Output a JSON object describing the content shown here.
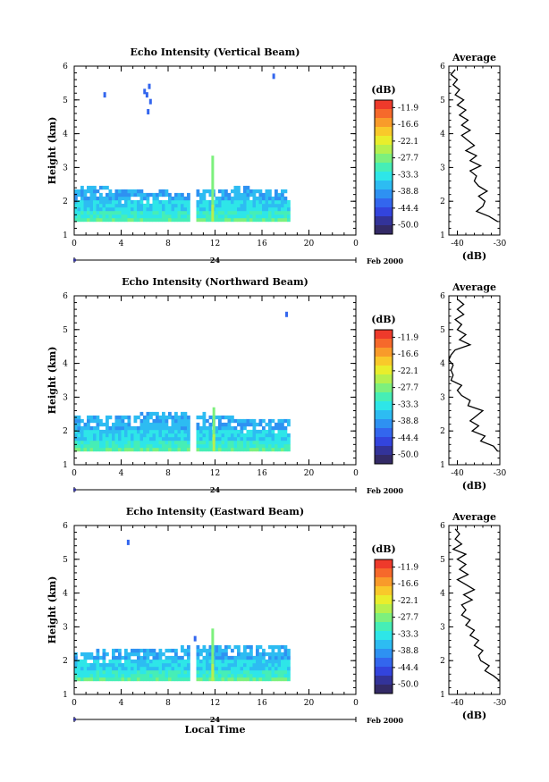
{
  "page": {
    "background": "#ffffff"
  },
  "colorbar": {
    "unit": "(dB)",
    "labels": [
      "-11.9",
      "-16.6",
      "-22.1",
      "-27.7",
      "-33.3",
      "-38.8",
      "-44.4",
      "-50.0"
    ],
    "colors": [
      "#ee3a2b",
      "#f6692b",
      "#f99b2a",
      "#f9c92a",
      "#e9ee2c",
      "#b6f04e",
      "#7df07d",
      "#46eeb6",
      "#2ee6e8",
      "#2dbcf2",
      "#2e91f2",
      "#3366ee",
      "#3344dd",
      "#333399",
      "#332a66"
    ]
  },
  "chart_data": [
    {
      "type": "heatmap",
      "title": "Echo Intensity (Vertical Beam)",
      "ylabel": "Height (km)",
      "xlabel": "",
      "xlim": [
        0,
        24
      ],
      "ylim": [
        1,
        6
      ],
      "xticks": [
        "0",
        "4",
        "8",
        "12",
        "16",
        "20",
        "0"
      ],
      "yticks": [
        "1",
        "2",
        "3",
        "4",
        "5",
        "6"
      ],
      "date_day": "24",
      "date_label": "Feb 2000",
      "echo": {
        "start": 0,
        "end": 18.5,
        "gap": [
          9.8,
          10.2
        ],
        "top_min": 2.3,
        "top_max": 2.6,
        "base": 1.4
      },
      "spike": {
        "x": 11.8,
        "top": 3.35
      },
      "specks": [
        {
          "x": 2.6,
          "y": 5.15
        },
        {
          "x": 6.0,
          "y": 5.25
        },
        {
          "x": 6.2,
          "y": 5.15
        },
        {
          "x": 6.4,
          "y": 5.4
        },
        {
          "x": 6.5,
          "y": 4.95
        },
        {
          "x": 6.3,
          "y": 4.65
        },
        {
          "x": 17.0,
          "y": 5.7
        }
      ],
      "profile": {
        "title": "Average",
        "xlabel": "(dB)",
        "xlim": [
          -42,
          -30
        ],
        "xticks": [
          "-40",
          "-30"
        ],
        "yticks": [
          "1",
          "2",
          "3",
          "4",
          "5",
          "6"
        ],
        "heights": [
          1.4,
          1.55,
          1.7,
          1.85,
          2.0,
          2.15,
          2.3,
          2.45,
          2.6,
          2.75,
          2.9,
          3.05,
          3.2,
          3.35,
          3.5,
          3.65,
          3.8,
          3.95,
          4.1,
          4.25,
          4.4,
          4.55,
          4.7,
          4.85,
          5.0,
          5.15,
          5.3,
          5.45,
          5.6,
          5.75,
          5.9
        ],
        "values": [
          -30.5,
          -32.5,
          -35.5,
          -34.0,
          -33.5,
          -35.0,
          -33.0,
          -35.0,
          -36.0,
          -35.5,
          -37.0,
          -34.5,
          -37.0,
          -35.5,
          -38.0,
          -36.0,
          -37.5,
          -39.0,
          -37.0,
          -39.0,
          -37.5,
          -39.5,
          -38.0,
          -40.0,
          -38.5,
          -40.5,
          -39.5,
          -41.0,
          -40.0,
          -41.5,
          -40.5
        ]
      }
    },
    {
      "type": "heatmap",
      "title": "Echo Intensity (Northward Beam)",
      "ylabel": "Height (km)",
      "xlabel": "",
      "xlim": [
        0,
        24
      ],
      "ylim": [
        1,
        6
      ],
      "xticks": [
        "0",
        "4",
        "8",
        "12",
        "16",
        "20",
        "0"
      ],
      "yticks": [
        "1",
        "2",
        "3",
        "4",
        "5",
        "6"
      ],
      "date_day": "24",
      "date_label": "Feb 2000",
      "echo": {
        "start": 0,
        "end": 18.5,
        "gap": [
          9.8,
          10.2
        ],
        "top_min": 2.35,
        "top_max": 2.6,
        "base": 1.4
      },
      "spike": {
        "x": 11.9,
        "top": 2.7
      },
      "specks": [
        {
          "x": 18.1,
          "y": 5.45
        }
      ],
      "profile": {
        "title": "Average",
        "xlabel": "(dB)",
        "xlim": [
          -42,
          -30
        ],
        "xticks": [
          "-40",
          "-30"
        ],
        "yticks": [
          "1",
          "2",
          "3",
          "4",
          "5",
          "6"
        ],
        "heights": [
          1.4,
          1.55,
          1.7,
          1.85,
          2.0,
          2.15,
          2.3,
          2.45,
          2.6,
          2.75,
          2.9,
          3.05,
          3.2,
          3.35,
          3.5,
          3.65,
          3.8,
          3.95,
          4.1,
          4.25,
          4.4,
          4.55,
          4.7,
          4.85,
          5.0,
          5.15,
          5.3,
          5.45,
          5.6,
          5.75,
          5.9
        ],
        "values": [
          -30.5,
          -31.5,
          -34.5,
          -33.5,
          -36.5,
          -35.0,
          -37.0,
          -35.5,
          -34.0,
          -37.5,
          -37.0,
          -39.0,
          -40.0,
          -39.0,
          -41.5,
          -41.0,
          -41.5,
          -41.0,
          -42.0,
          -41.5,
          -40.5,
          -37.0,
          -39.5,
          -38.0,
          -40.0,
          -39.0,
          -40.5,
          -38.5,
          -40.0,
          -38.5,
          -40.0
        ]
      }
    },
    {
      "type": "heatmap",
      "title": "Echo Intensity (Eastward Beam)",
      "ylabel": "Height (km)",
      "xlabel": "Local Time",
      "xlim": [
        0,
        24
      ],
      "ylim": [
        1,
        6
      ],
      "xticks": [
        "0",
        "4",
        "8",
        "12",
        "16",
        "20",
        "0"
      ],
      "yticks": [
        "1",
        "2",
        "3",
        "4",
        "5",
        "6"
      ],
      "date_day": "24",
      "date_label": "Feb 2000",
      "echo": {
        "start": 0,
        "end": 18.5,
        "gap": [
          9.8,
          10.2
        ],
        "top_min": 2.3,
        "top_max": 2.55,
        "base": 1.4
      },
      "spike": {
        "x": 11.8,
        "top": 2.95
      },
      "specks": [
        {
          "x": 4.6,
          "y": 5.5
        },
        {
          "x": 10.3,
          "y": 2.65
        }
      ],
      "profile": {
        "title": "Average",
        "xlabel": "(dB)",
        "xlim": [
          -42,
          -30
        ],
        "xticks": [
          "-40",
          "-30"
        ],
        "yticks": [
          "1",
          "2",
          "3",
          "4",
          "5",
          "6"
        ],
        "heights": [
          1.4,
          1.55,
          1.7,
          1.85,
          2.0,
          2.15,
          2.3,
          2.45,
          2.6,
          2.75,
          2.9,
          3.05,
          3.2,
          3.35,
          3.5,
          3.65,
          3.8,
          3.95,
          4.1,
          4.25,
          4.4,
          4.55,
          4.7,
          4.85,
          5.0,
          5.15,
          5.3,
          5.45,
          5.6,
          5.75,
          5.9
        ],
        "values": [
          -30.0,
          -31.5,
          -33.5,
          -32.5,
          -34.5,
          -35.0,
          -34.0,
          -36.0,
          -35.0,
          -37.0,
          -36.0,
          -38.0,
          -37.0,
          -39.0,
          -38.0,
          -39.0,
          -36.5,
          -38.5,
          -36.0,
          -38.0,
          -40.0,
          -37.5,
          -39.5,
          -38.0,
          -40.0,
          -38.0,
          -41.0,
          -39.0,
          -40.5,
          -39.5,
          -40.5
        ]
      }
    }
  ]
}
